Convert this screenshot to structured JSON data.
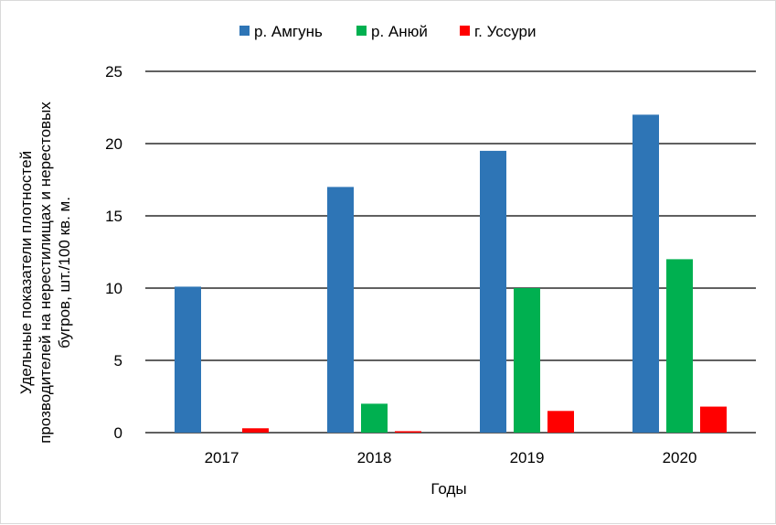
{
  "chart_data": {
    "type": "bar",
    "categories": [
      "2017",
      "2018",
      "2019",
      "2020"
    ],
    "series": [
      {
        "name": "р. Амгунь",
        "color": "#2e75b6",
        "values": [
          10.1,
          17.0,
          19.5,
          22.0
        ]
      },
      {
        "name": "р. Анюй",
        "color": "#00b050",
        "values": [
          0,
          2.0,
          10.0,
          12.0
        ]
      },
      {
        "name": "г. Уссури",
        "color": "#ff0000",
        "values": [
          0.3,
          0.1,
          1.5,
          1.8
        ]
      }
    ],
    "xlabel": "Годы",
    "ylabel_lines": [
      "Удельные показатели плотностей",
      "прозводителей на нерестилищах и нерестовых",
      "бугров,  шт./100 кв. м."
    ],
    "yticks": [
      "0",
      "5",
      "10",
      "15",
      "20",
      "25"
    ],
    "ylim": [
      0,
      25
    ],
    "grid": true,
    "legend_position": "top"
  }
}
